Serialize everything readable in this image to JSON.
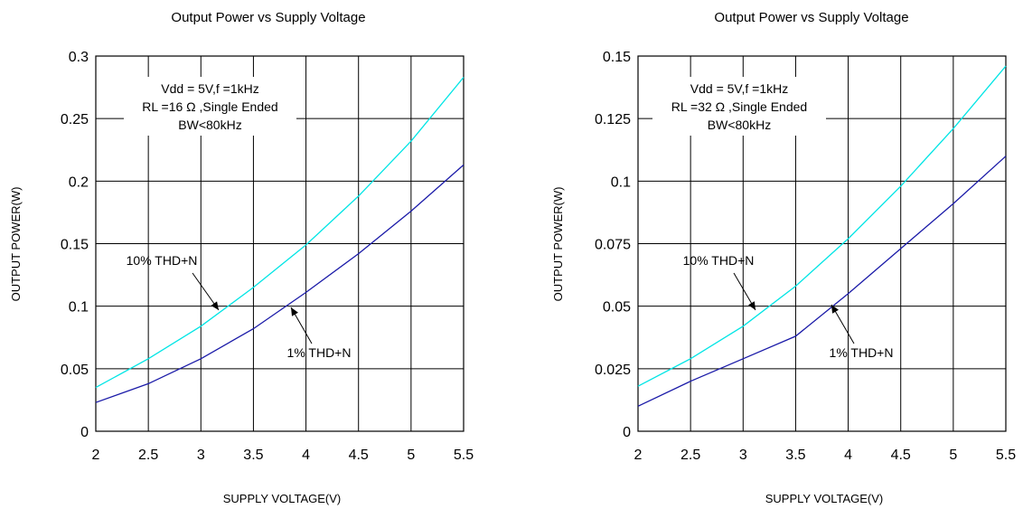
{
  "chart_data": [
    {
      "type": "line",
      "title": "Output Power vs Supply Voltage",
      "xlabel": "SUPPLY VOLTAGE(V)",
      "ylabel": "OUTPUT POWER(W)",
      "xlim": [
        2,
        5.5
      ],
      "ylim": [
        0,
        0.3
      ],
      "x_ticks": [
        "2",
        "2.5",
        "3",
        "3.5",
        "4",
        "4.5",
        "5",
        "5.5"
      ],
      "y_ticks": [
        "0",
        "0.05",
        "0.1",
        "0.15",
        "0.2",
        "0.25",
        "0.3"
      ],
      "grid": true,
      "conditions": [
        "Vdd = 5V,f =1kHz",
        "RL =16 Ω ,Single Ended",
        "BW<80kHz"
      ],
      "series": [
        {
          "name": "10% THD+N",
          "color": "#00e5e5",
          "x": [
            2,
            2.5,
            3,
            3.5,
            4,
            4.5,
            5,
            5.5
          ],
          "y": [
            0.035,
            0.058,
            0.084,
            0.115,
            0.149,
            0.188,
            0.232,
            0.283
          ]
        },
        {
          "name": "1% THD+N",
          "color": "#1a1aa8",
          "x": [
            2,
            2.5,
            3,
            3.5,
            4,
            4.5,
            5,
            5.5
          ],
          "y": [
            0.023,
            0.038,
            0.058,
            0.082,
            0.111,
            0.142,
            0.176,
            0.213
          ]
        }
      ],
      "annotations": [
        {
          "text": "10% THD+N",
          "series": 0
        },
        {
          "text": "1% THD+N",
          "series": 1
        }
      ]
    },
    {
      "type": "line",
      "title": "Output Power vs Supply Voltage",
      "xlabel": "SUPPLY VOLTAGE(V)",
      "ylabel": "OUTPUT POWER(W)",
      "xlim": [
        2,
        5.5
      ],
      "ylim": [
        0,
        0.15
      ],
      "x_ticks": [
        "2",
        "2.5",
        "3",
        "3.5",
        "4",
        "4.5",
        "5",
        "5.5"
      ],
      "y_ticks": [
        "0",
        "0.025",
        "0.05",
        "0.075",
        "0.1",
        "0.125",
        "0.15"
      ],
      "grid": true,
      "conditions": [
        "Vdd = 5V,f =1kHz",
        "RL =32 Ω ,Single Ended",
        "BW<80kHz"
      ],
      "series": [
        {
          "name": "10% THD+N",
          "color": "#00e5e5",
          "x": [
            2,
            2.5,
            3,
            3.5,
            4,
            4.5,
            5,
            5.5
          ],
          "y": [
            0.018,
            0.029,
            0.042,
            0.058,
            0.077,
            0.098,
            0.121,
            0.146
          ]
        },
        {
          "name": "1% THD+N",
          "color": "#1a1aa8",
          "x": [
            2,
            2.5,
            3,
            3.5,
            4,
            4.5,
            5,
            5.5
          ],
          "y": [
            0.01,
            0.02,
            0.029,
            0.038,
            0.055,
            0.073,
            0.091,
            0.11
          ]
        }
      ],
      "annotations": [
        {
          "text": "10% THD+N",
          "series": 0
        },
        {
          "text": "1% THD+N",
          "series": 1
        }
      ]
    }
  ]
}
